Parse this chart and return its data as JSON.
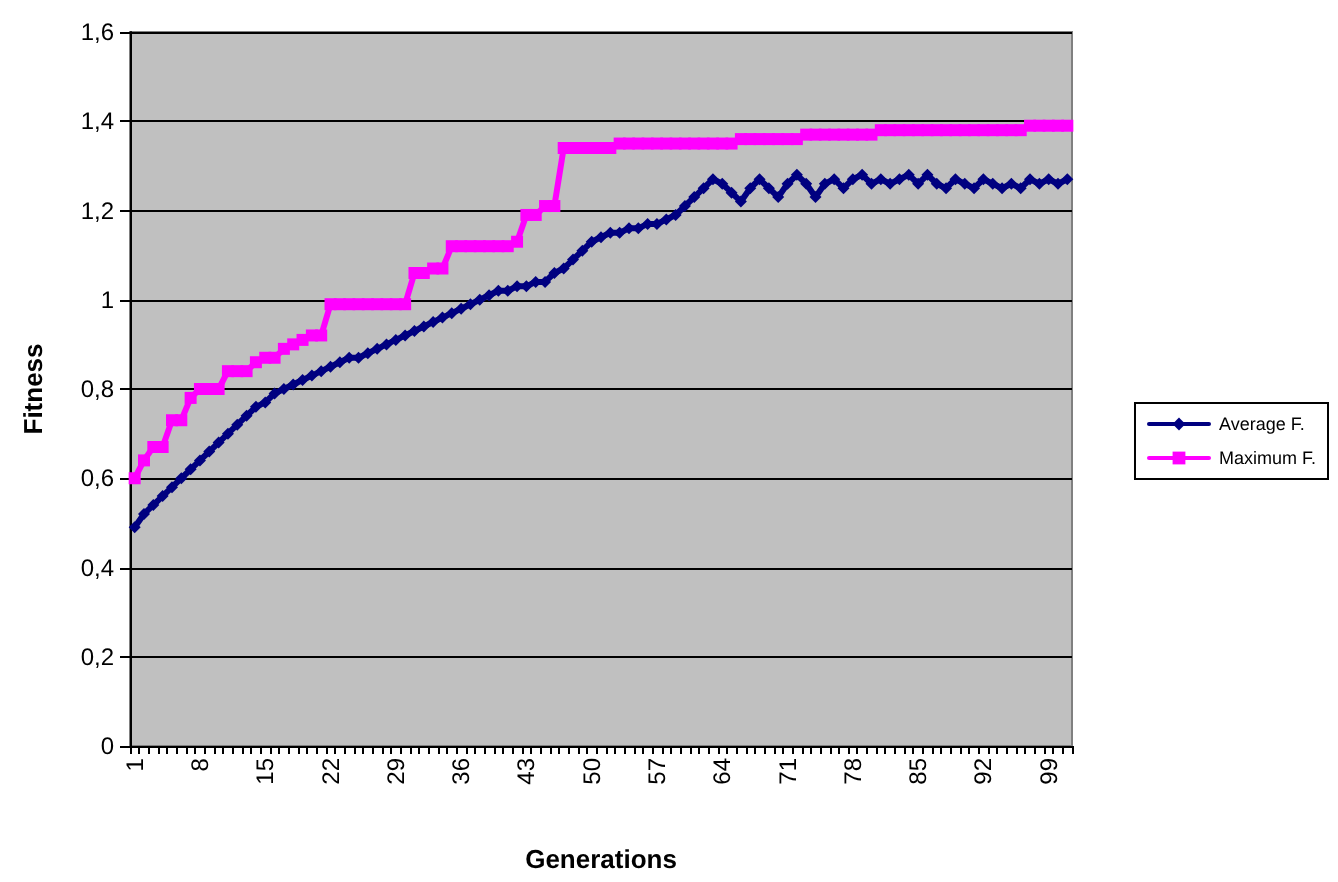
{
  "chart_data": {
    "type": "line",
    "xlabel": "Generations",
    "ylabel": "Fitness",
    "categories": [
      "1",
      null,
      null,
      null,
      null,
      null,
      null,
      "8",
      null,
      null,
      null,
      null,
      null,
      null,
      "15",
      null,
      null,
      null,
      null,
      null,
      null,
      "22",
      null,
      null,
      null,
      null,
      null,
      null,
      "29",
      null,
      null,
      null,
      null,
      null,
      null,
      "36",
      null,
      null,
      null,
      null,
      null,
      null,
      "43",
      null,
      null,
      null,
      null,
      null,
      null,
      "50",
      null,
      null,
      null,
      null,
      null,
      null,
      "57",
      null,
      null,
      null,
      null,
      null,
      null,
      "64",
      null,
      null,
      null,
      null,
      null,
      null,
      "71",
      null,
      null,
      null,
      null,
      null,
      null,
      "78",
      null,
      null,
      null,
      null,
      null,
      null,
      "85",
      null,
      null,
      null,
      null,
      null,
      null,
      "92",
      null,
      null,
      null,
      null,
      null,
      null,
      "99",
      null,
      null
    ],
    "series": [
      {
        "name": "Average F.",
        "color": "#000080",
        "marker": "diamond",
        "values": [
          0.49,
          0.52,
          0.54,
          0.56,
          0.58,
          0.6,
          0.62,
          0.64,
          0.66,
          0.68,
          0.7,
          0.72,
          0.74,
          0.76,
          0.77,
          0.79,
          0.8,
          0.81,
          0.82,
          0.83,
          0.84,
          0.85,
          0.86,
          0.87,
          0.87,
          0.88,
          0.89,
          0.9,
          0.91,
          0.92,
          0.93,
          0.94,
          0.95,
          0.96,
          0.97,
          0.98,
          0.99,
          1.0,
          1.01,
          1.02,
          1.02,
          1.03,
          1.03,
          1.04,
          1.04,
          1.06,
          1.07,
          1.09,
          1.11,
          1.13,
          1.14,
          1.15,
          1.15,
          1.16,
          1.16,
          1.17,
          1.17,
          1.18,
          1.19,
          1.21,
          1.23,
          1.25,
          1.27,
          1.26,
          1.24,
          1.22,
          1.25,
          1.27,
          1.25,
          1.23,
          1.26,
          1.28,
          1.26,
          1.23,
          1.26,
          1.27,
          1.25,
          1.27,
          1.28,
          1.26,
          1.27,
          1.26,
          1.27,
          1.28,
          1.26,
          1.28,
          1.26,
          1.25,
          1.27,
          1.26,
          1.25,
          1.27,
          1.26,
          1.25,
          1.26,
          1.25,
          1.27,
          1.26,
          1.27,
          1.26,
          1.27
        ]
      },
      {
        "name": "Maximum F.",
        "color": "#ff00ff",
        "marker": "square",
        "values": [
          0.6,
          0.64,
          0.67,
          0.67,
          0.73,
          0.73,
          0.78,
          0.8,
          0.8,
          0.8,
          0.84,
          0.84,
          0.84,
          0.86,
          0.87,
          0.87,
          0.89,
          0.9,
          0.91,
          0.92,
          0.92,
          0.99,
          0.99,
          0.99,
          0.99,
          0.99,
          0.99,
          0.99,
          0.99,
          0.99,
          1.06,
          1.06,
          1.07,
          1.07,
          1.12,
          1.12,
          1.12,
          1.12,
          1.12,
          1.12,
          1.12,
          1.13,
          1.19,
          1.19,
          1.21,
          1.21,
          1.34,
          1.34,
          1.34,
          1.34,
          1.34,
          1.34,
          1.35,
          1.35,
          1.35,
          1.35,
          1.35,
          1.35,
          1.35,
          1.35,
          1.35,
          1.35,
          1.35,
          1.35,
          1.35,
          1.36,
          1.36,
          1.36,
          1.36,
          1.36,
          1.36,
          1.36,
          1.37,
          1.37,
          1.37,
          1.37,
          1.37,
          1.37,
          1.37,
          1.37,
          1.38,
          1.38,
          1.38,
          1.38,
          1.38,
          1.38,
          1.38,
          1.38,
          1.38,
          1.38,
          1.38,
          1.38,
          1.38,
          1.38,
          1.38,
          1.38,
          1.39,
          1.39,
          1.39,
          1.39,
          1.39
        ]
      }
    ],
    "ylim": [
      0,
      1.6
    ],
    "yticks": [
      0,
      {
        "value": 0.2,
        "label": "0,2"
      },
      {
        "value": 0.4,
        "label": "0,4"
      },
      {
        "value": 0.6,
        "label": "0,6"
      },
      {
        "value": 0.8,
        "label": "0,8"
      },
      1,
      {
        "value": 1.2,
        "label": "1,2"
      },
      {
        "value": 1.4,
        "label": "1,4"
      },
      {
        "value": 1.6,
        "label": "1,6"
      }
    ],
    "grid": "y",
    "legend": "right"
  }
}
